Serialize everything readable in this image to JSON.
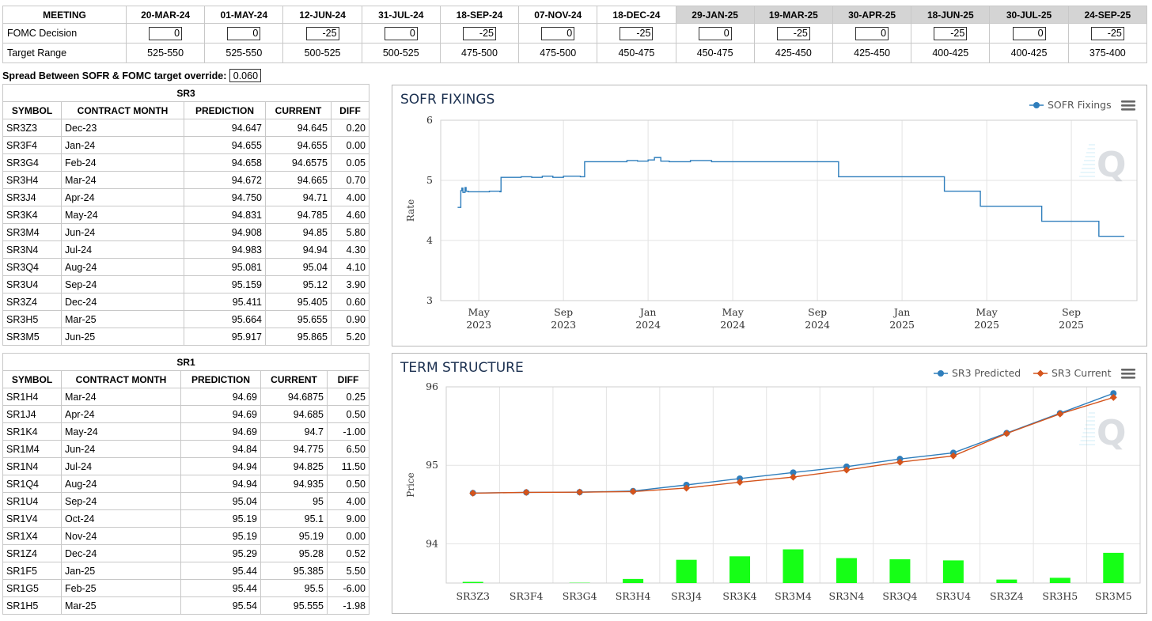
{
  "meetings": {
    "header_label": "MEETING",
    "decision_label": "FOMC Decision",
    "range_label": "Target Range",
    "columns": [
      {
        "date": "20-MAR-24",
        "decision": "0",
        "range": "525-550",
        "future": false
      },
      {
        "date": "01-MAY-24",
        "decision": "0",
        "range": "525-550",
        "future": false
      },
      {
        "date": "12-JUN-24",
        "decision": "-25",
        "range": "500-525",
        "future": false
      },
      {
        "date": "31-JUL-24",
        "decision": "0",
        "range": "500-525",
        "future": false
      },
      {
        "date": "18-SEP-24",
        "decision": "-25",
        "range": "475-500",
        "future": false
      },
      {
        "date": "07-NOV-24",
        "decision": "0",
        "range": "475-500",
        "future": false
      },
      {
        "date": "18-DEC-24",
        "decision": "-25",
        "range": "450-475",
        "future": false
      },
      {
        "date": "29-JAN-25",
        "decision": "0",
        "range": "450-475",
        "future": true
      },
      {
        "date": "19-MAR-25",
        "decision": "-25",
        "range": "425-450",
        "future": true
      },
      {
        "date": "30-APR-25",
        "decision": "0",
        "range": "425-450",
        "future": true
      },
      {
        "date": "18-JUN-25",
        "decision": "-25",
        "range": "400-425",
        "future": true
      },
      {
        "date": "30-JUL-25",
        "decision": "0",
        "range": "400-425",
        "future": true
      },
      {
        "date": "24-SEP-25",
        "decision": "-25",
        "range": "375-400",
        "future": true
      }
    ]
  },
  "spread": {
    "label": "Spread Between SOFR & FOMC target override:",
    "value": "0.060"
  },
  "sr3": {
    "title": "SR3",
    "headers": [
      "SYMBOL",
      "CONTRACT MONTH",
      "PREDICTION",
      "CURRENT",
      "DIFF"
    ],
    "rows": [
      [
        "SR3Z3",
        "Dec-23",
        "94.647",
        "94.645",
        "0.20"
      ],
      [
        "SR3F4",
        "Jan-24",
        "94.655",
        "94.655",
        "0.00"
      ],
      [
        "SR3G4",
        "Feb-24",
        "94.658",
        "94.6575",
        "0.05"
      ],
      [
        "SR3H4",
        "Mar-24",
        "94.672",
        "94.665",
        "0.70"
      ],
      [
        "SR3J4",
        "Apr-24",
        "94.750",
        "94.71",
        "4.00"
      ],
      [
        "SR3K4",
        "May-24",
        "94.831",
        "94.785",
        "4.60"
      ],
      [
        "SR3M4",
        "Jun-24",
        "94.908",
        "94.85",
        "5.80"
      ],
      [
        "SR3N4",
        "Jul-24",
        "94.983",
        "94.94",
        "4.30"
      ],
      [
        "SR3Q4",
        "Aug-24",
        "95.081",
        "95.04",
        "4.10"
      ],
      [
        "SR3U4",
        "Sep-24",
        "95.159",
        "95.12",
        "3.90"
      ],
      [
        "SR3Z4",
        "Dec-24",
        "95.411",
        "95.405",
        "0.60"
      ],
      [
        "SR3H5",
        "Mar-25",
        "95.664",
        "95.655",
        "0.90"
      ],
      [
        "SR3M5",
        "Jun-25",
        "95.917",
        "95.865",
        "5.20"
      ]
    ]
  },
  "sr1": {
    "title": "SR1",
    "headers": [
      "SYMBOL",
      "CONTRACT MONTH",
      "PREDICTION",
      "CURRENT",
      "DIFF"
    ],
    "rows": [
      [
        "SR1H4",
        "Mar-24",
        "94.69",
        "94.6875",
        "0.25"
      ],
      [
        "SR1J4",
        "Apr-24",
        "94.69",
        "94.685",
        "0.50"
      ],
      [
        "SR1K4",
        "May-24",
        "94.69",
        "94.7",
        "-1.00"
      ],
      [
        "SR1M4",
        "Jun-24",
        "94.84",
        "94.775",
        "6.50"
      ],
      [
        "SR1N4",
        "Jul-24",
        "94.94",
        "94.825",
        "11.50"
      ],
      [
        "SR1Q4",
        "Aug-24",
        "94.94",
        "94.935",
        "0.50"
      ],
      [
        "SR1U4",
        "Sep-24",
        "95.04",
        "95",
        "4.00"
      ],
      [
        "SR1V4",
        "Oct-24",
        "95.19",
        "95.1",
        "9.00"
      ],
      [
        "SR1X4",
        "Nov-24",
        "95.19",
        "95.19",
        "0.00"
      ],
      [
        "SR1Z4",
        "Dec-24",
        "95.29",
        "95.28",
        "0.52"
      ],
      [
        "SR1F5",
        "Jan-25",
        "95.44",
        "95.385",
        "5.50"
      ],
      [
        "SR1G5",
        "Feb-25",
        "95.44",
        "95.5",
        "-6.00"
      ],
      [
        "SR1H5",
        "Mar-25",
        "95.54",
        "95.555",
        "-1.98"
      ]
    ]
  },
  "chart_data": [
    {
      "type": "line",
      "title": "SOFR FIXINGS",
      "ylabel": "Rate",
      "xlabel": "",
      "ylim": [
        3,
        6
      ],
      "yticks": [
        3,
        4,
        5,
        6
      ],
      "xticks": [
        [
          "May",
          "2023"
        ],
        [
          "Sep",
          "2023"
        ],
        [
          "Jan",
          "2024"
        ],
        [
          "May",
          "2024"
        ],
        [
          "Sep",
          "2024"
        ],
        [
          "Jan",
          "2025"
        ],
        [
          "May",
          "2025"
        ],
        [
          "Sep",
          "2025"
        ]
      ],
      "xtick_months": [
        4,
        8,
        12,
        16,
        20,
        24,
        28,
        32
      ],
      "series": [
        {
          "name": "SOFR Fixings",
          "color": "#2f7ebc",
          "x": [
            3.0,
            3.1,
            3.15,
            3.2,
            3.25,
            3.35,
            3.4,
            3.5,
            4.0,
            4.5,
            4.8,
            5.0,
            5.05,
            6.0,
            6.5,
            7.0,
            7.5,
            8.0,
            8.8,
            9.0,
            9.3,
            10.0,
            11.0,
            11.5,
            12.0,
            12.3,
            12.6,
            13.0,
            14.0,
            15.0,
            16.0,
            17.0,
            17.5,
            17.9,
            18.0,
            20.0,
            20.8,
            21.0,
            23.0,
            23.6,
            24.0,
            25.0,
            26.0,
            26.0,
            27.0,
            27.7,
            28.0,
            29.0,
            30.0,
            30.6,
            31.0,
            32.0,
            33.2,
            33.3,
            34.0,
            34.5
          ],
          "y": [
            4.55,
            4.55,
            4.83,
            4.87,
            4.8,
            4.88,
            4.82,
            4.81,
            4.81,
            4.82,
            4.82,
            4.81,
            5.05,
            5.06,
            5.05,
            5.07,
            5.05,
            5.07,
            5.06,
            5.31,
            5.31,
            5.31,
            5.33,
            5.32,
            5.34,
            5.38,
            5.32,
            5.31,
            5.33,
            5.31,
            5.31,
            5.31,
            5.31,
            5.31,
            5.31,
            5.31,
            5.31,
            5.06,
            5.06,
            5.06,
            5.06,
            5.06,
            4.82,
            4.82,
            4.82,
            4.57,
            4.57,
            4.57,
            4.57,
            4.32,
            4.32,
            4.32,
            4.32,
            4.07,
            4.07,
            4.07
          ]
        }
      ]
    },
    {
      "type": "line",
      "title": "TERM STRUCTURE",
      "ylabel": "Price",
      "xlabel": "",
      "ylim": [
        93.5,
        96
      ],
      "yticks": [
        94,
        95,
        96
      ],
      "categories": [
        "SR3Z3",
        "SR3F4",
        "SR3G4",
        "SR3H4",
        "SR3J4",
        "SR3K4",
        "SR3M4",
        "SR3N4",
        "SR3Q4",
        "SR3U4",
        "SR3Z4",
        "SR3H5",
        "SR3M5"
      ],
      "series": [
        {
          "name": "SR3 Predicted",
          "color": "#2f7ebc",
          "marker": "circle",
          "values": [
            94.647,
            94.655,
            94.658,
            94.672,
            94.75,
            94.831,
            94.908,
            94.983,
            95.081,
            95.159,
            95.411,
            95.664,
            95.917
          ]
        },
        {
          "name": "SR3 Current",
          "color": "#d4541c",
          "marker": "diamond",
          "values": [
            94.645,
            94.655,
            94.6575,
            94.665,
            94.71,
            94.785,
            94.85,
            94.94,
            95.04,
            95.12,
            95.405,
            95.655,
            95.865
          ]
        }
      ],
      "bars": {
        "name": "DIFF",
        "color": "#16ff16",
        "values": [
          0.2,
          0.0,
          0.05,
          0.7,
          4.0,
          4.6,
          5.8,
          4.3,
          4.1,
          3.9,
          0.6,
          0.9,
          5.2
        ],
        "vmax": 6.0
      }
    }
  ]
}
